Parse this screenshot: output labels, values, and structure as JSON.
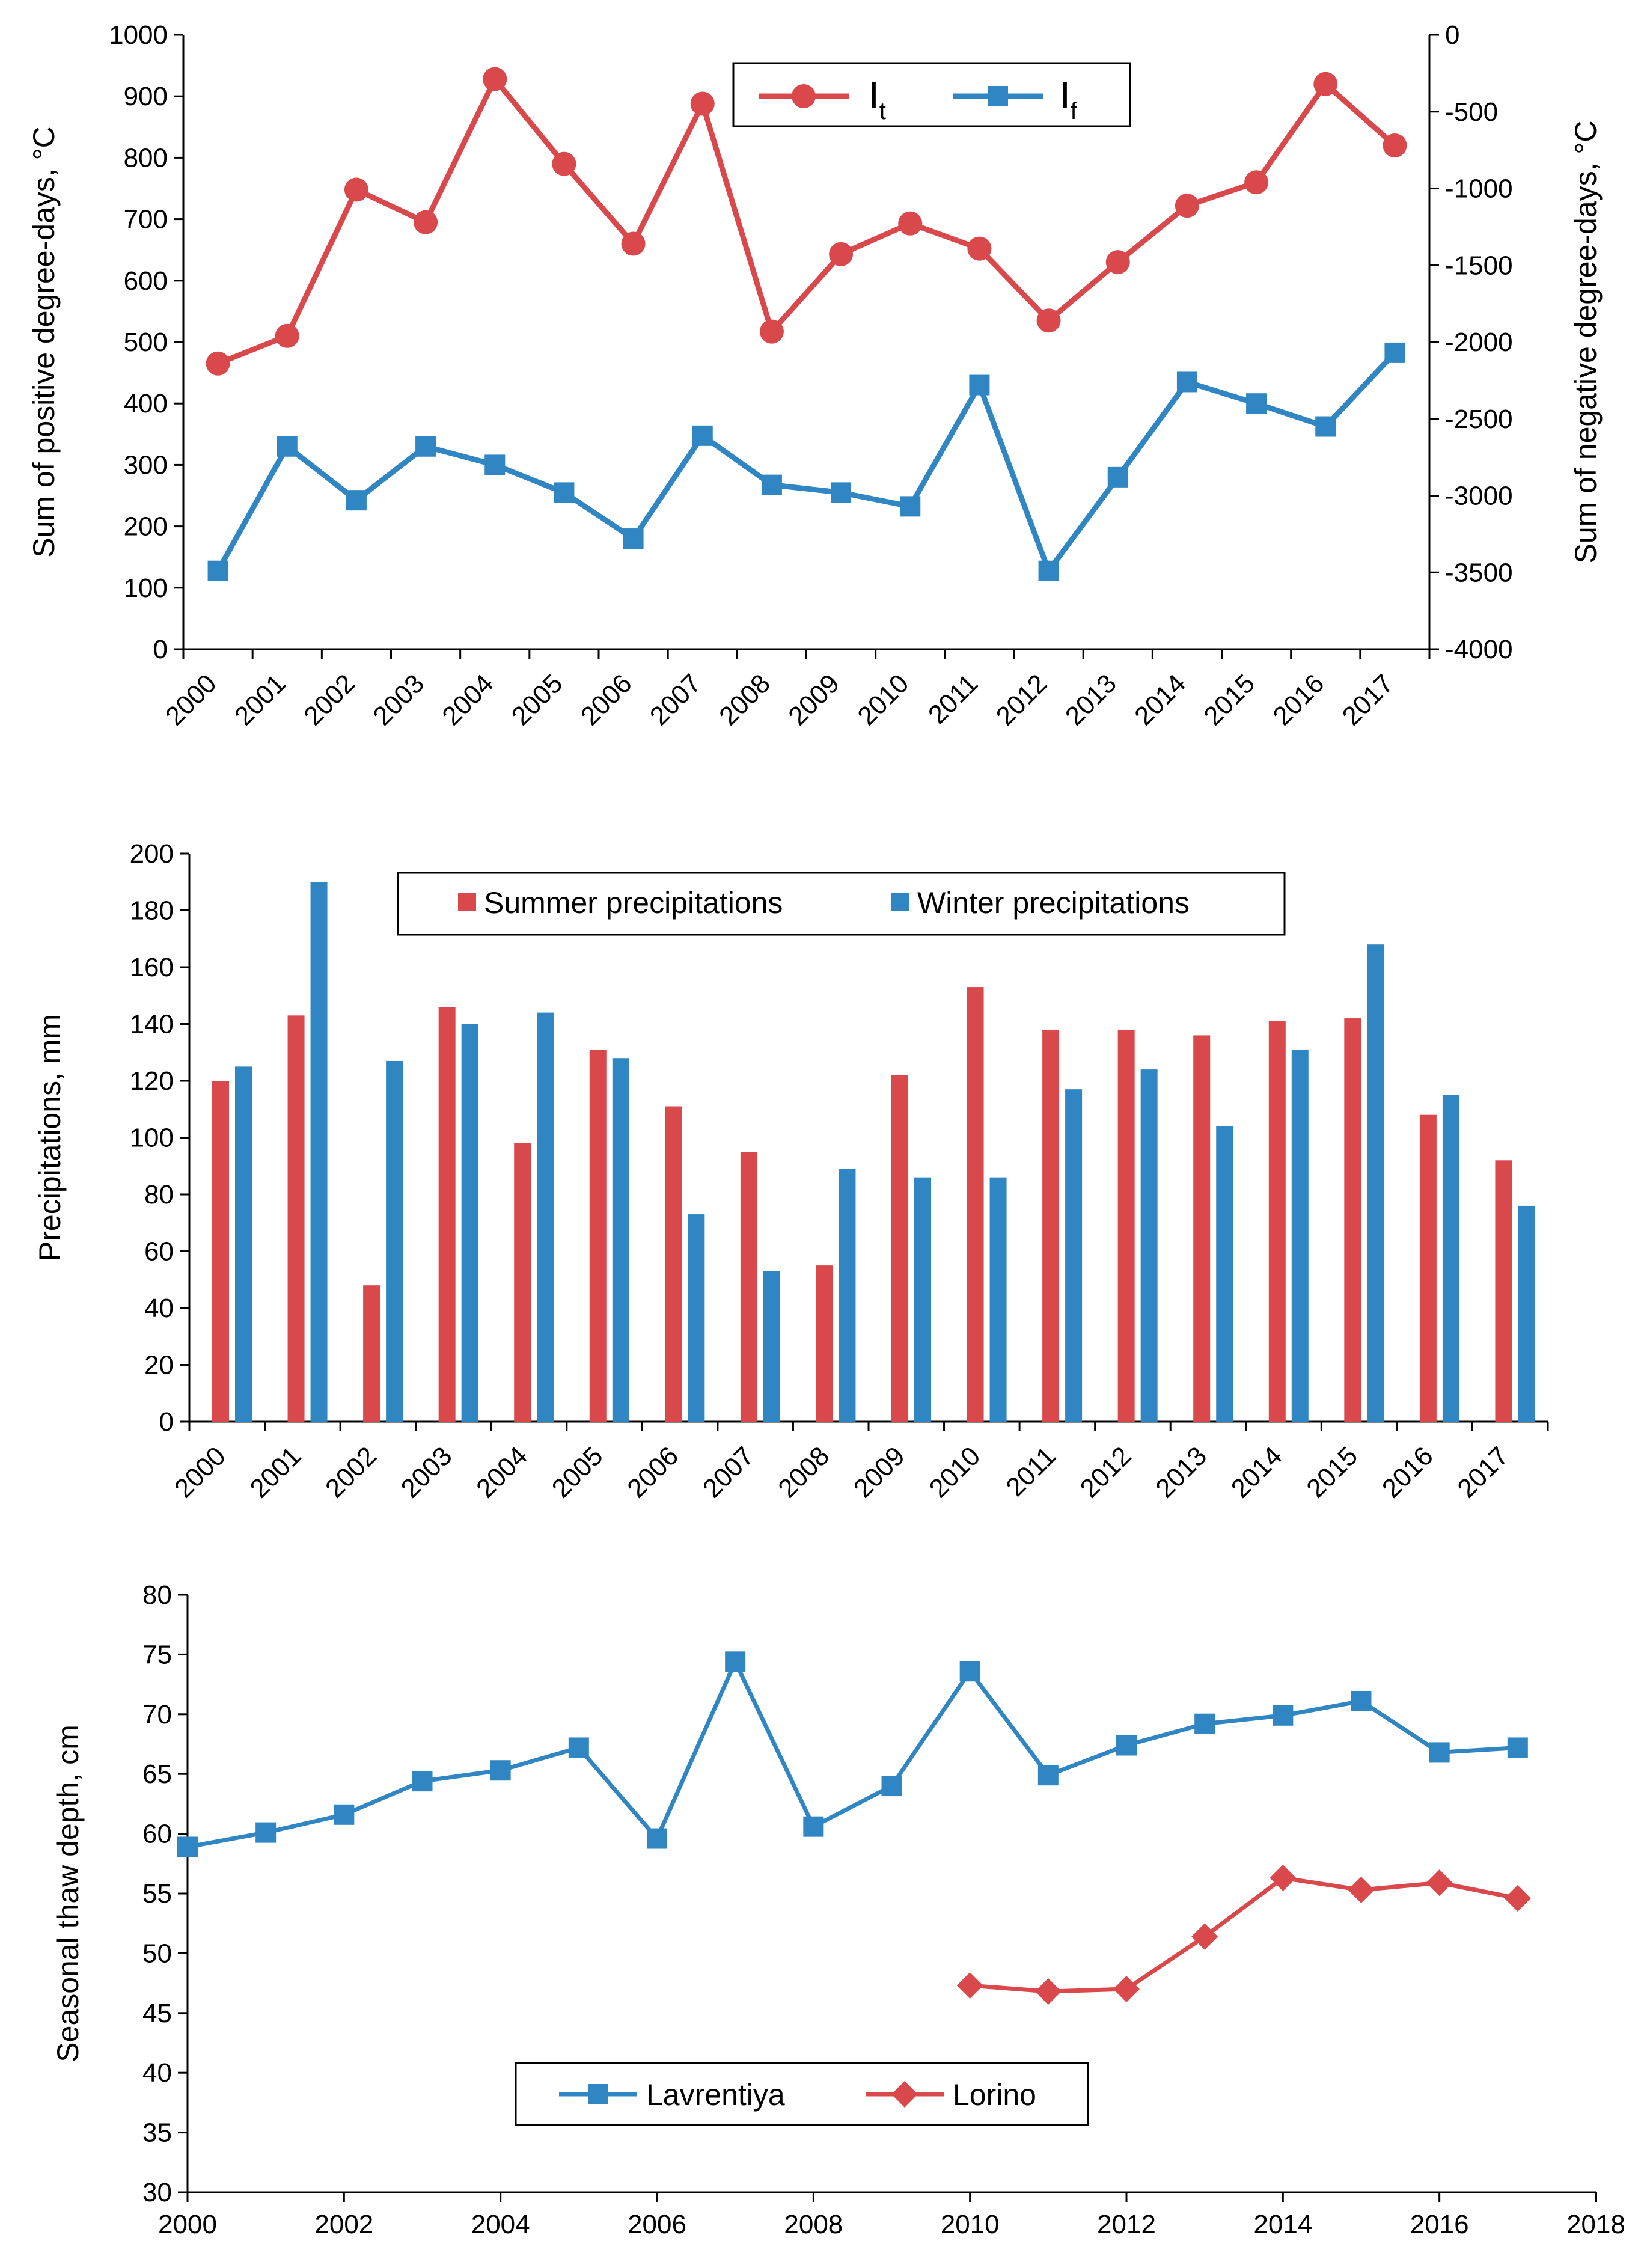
{
  "chart_data": [
    {
      "type": "line",
      "name": "degree-days",
      "x": [
        2000,
        2001,
        2002,
        2003,
        2004,
        2005,
        2006,
        2007,
        2008,
        2009,
        2010,
        2011,
        2012,
        2013,
        2014,
        2015,
        2016,
        2017
      ],
      "series": [
        {
          "name": "It",
          "symbol": "I",
          "subscript": "t",
          "axis": "left",
          "marker": "circle",
          "color": "#d9484a",
          "values": [
            465,
            510,
            748,
            695,
            928,
            790,
            660,
            888,
            517,
            643,
            693,
            652,
            535,
            630,
            722,
            760,
            920,
            820
          ]
        },
        {
          "name": "If",
          "symbol": "I",
          "subscript": "f",
          "axis": "right",
          "marker": "square",
          "color": "#2f86c2",
          "values": [
            -3490,
            -2680,
            -3030,
            -2680,
            -2800,
            -2980,
            -3280,
            -2610,
            -2930,
            -2980,
            -3070,
            -2280,
            -3490,
            -2880,
            -2260,
            -2400,
            -2550,
            -2070
          ]
        }
      ],
      "ylabel": "Sum of positive degree-days, °C",
      "ylabel_right": "Sum of negative degree-days, °C",
      "ylim": [
        0,
        1000
      ],
      "yticks": [
        0,
        100,
        200,
        300,
        400,
        500,
        600,
        700,
        800,
        900,
        1000
      ],
      "ylim_right": [
        -4000,
        0
      ],
      "yticks_right": [
        0,
        -500,
        -1000,
        -1500,
        -2000,
        -2500,
        -3000,
        -3500,
        -4000
      ],
      "legend_position": "top-center"
    },
    {
      "type": "bar",
      "name": "precipitations",
      "categories": [
        "2000",
        "2001",
        "2002",
        "2003",
        "2004",
        "2005",
        "2006",
        "2007",
        "2008",
        "2009",
        "2010",
        "2011",
        "2012",
        "2013",
        "2014",
        "2015",
        "2016",
        "2017"
      ],
      "series": [
        {
          "name": "Summer precipitations",
          "color": "#d9484a",
          "values": [
            120,
            143,
            48,
            146,
            98,
            131,
            111,
            95,
            55,
            122,
            153,
            138,
            138,
            136,
            141,
            142,
            108,
            92
          ]
        },
        {
          "name": "Winter precipitations",
          "color": "#2f86c2",
          "values": [
            125,
            190,
            127,
            140,
            144,
            128,
            73,
            53,
            89,
            86,
            86,
            117,
            124,
            104,
            131,
            168,
            115,
            76
          ]
        }
      ],
      "ylabel": "Precipitations, mm",
      "ylim": [
        0,
        200
      ],
      "yticks": [
        0,
        20,
        40,
        60,
        80,
        100,
        120,
        140,
        160,
        180,
        200
      ],
      "legend_position": "top-center"
    },
    {
      "type": "line",
      "name": "thaw-depth",
      "series": [
        {
          "name": "Lavrentiya",
          "marker": "square",
          "color": "#2f86c2",
          "x": [
            2000,
            2001,
            2002,
            2003,
            2004,
            2005,
            2006,
            2007,
            2008,
            2009,
            2010,
            2011,
            2012,
            2013,
            2014,
            2015,
            2016,
            2017
          ],
          "values": [
            58.9,
            60.1,
            61.6,
            64.4,
            65.3,
            67.2,
            59.6,
            74.4,
            60.6,
            64.0,
            73.6,
            64.9,
            67.4,
            69.2,
            69.9,
            71.1,
            66.8,
            67.2
          ]
        },
        {
          "name": "Lorino",
          "marker": "diamond",
          "color": "#d9484a",
          "x": [
            2010,
            2011,
            2012,
            2013,
            2014,
            2015,
            2016,
            2017
          ],
          "values": [
            47.3,
            46.8,
            47.0,
            51.4,
            56.3,
            55.3,
            55.9,
            54.6
          ]
        }
      ],
      "ylabel": "Seasonal thaw depth, cm",
      "xlim": [
        2000,
        2018
      ],
      "xticks": [
        2000,
        2002,
        2004,
        2006,
        2008,
        2010,
        2012,
        2014,
        2016,
        2018
      ],
      "ylim": [
        30,
        80
      ],
      "yticks": [
        30,
        35,
        40,
        45,
        50,
        55,
        60,
        65,
        70,
        75,
        80
      ],
      "legend_position": "bottom-center"
    }
  ]
}
